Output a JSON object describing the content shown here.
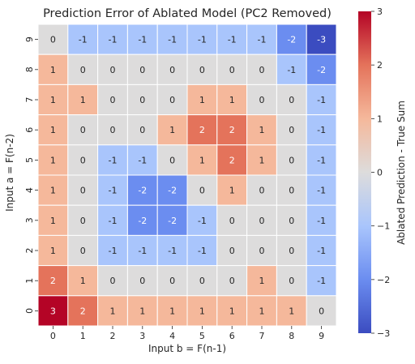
{
  "chart_data": {
    "type": "heatmap",
    "title": "Prediction Error of Ablated Model (PC2 Removed)",
    "xlabel": "Input b = F(n-1)",
    "ylabel": "Input a = F(n-2)",
    "colorbar_label": "Ablated Prediction - True Sum",
    "x_ticks": [
      "0",
      "1",
      "2",
      "3",
      "4",
      "5",
      "6",
      "7",
      "8",
      "9"
    ],
    "y_ticks_top_to_bottom": [
      "9",
      "8",
      "7",
      "6",
      "5",
      "4",
      "3",
      "2",
      "1",
      "0"
    ],
    "values_top_to_bottom": [
      [
        0,
        -1,
        -1,
        -1,
        -1,
        -1,
        -1,
        -1,
        -2,
        -3
      ],
      [
        1,
        0,
        0,
        0,
        0,
        0,
        0,
        0,
        -1,
        -2
      ],
      [
        1,
        1,
        0,
        0,
        0,
        1,
        1,
        0,
        0,
        -1
      ],
      [
        1,
        0,
        0,
        0,
        1,
        2,
        2,
        1,
        0,
        -1
      ],
      [
        1,
        0,
        -1,
        -1,
        0,
        1,
        2,
        1,
        0,
        -1
      ],
      [
        1,
        0,
        -1,
        -2,
        -2,
        0,
        1,
        0,
        0,
        -1
      ],
      [
        1,
        0,
        -1,
        -2,
        -2,
        -1,
        0,
        0,
        0,
        -1
      ],
      [
        1,
        0,
        -1,
        -1,
        -1,
        -1,
        0,
        0,
        0,
        -1
      ],
      [
        2,
        1,
        0,
        0,
        0,
        0,
        0,
        1,
        0,
        -1
      ],
      [
        3,
        2,
        1,
        1,
        1,
        1,
        1,
        1,
        1,
        0
      ]
    ],
    "color_range": [
      -3,
      3
    ],
    "colorbar_ticks": [
      "3",
      "2",
      "1",
      "0",
      "−1",
      "−2",
      "−3"
    ],
    "colormap": "coolwarm"
  }
}
